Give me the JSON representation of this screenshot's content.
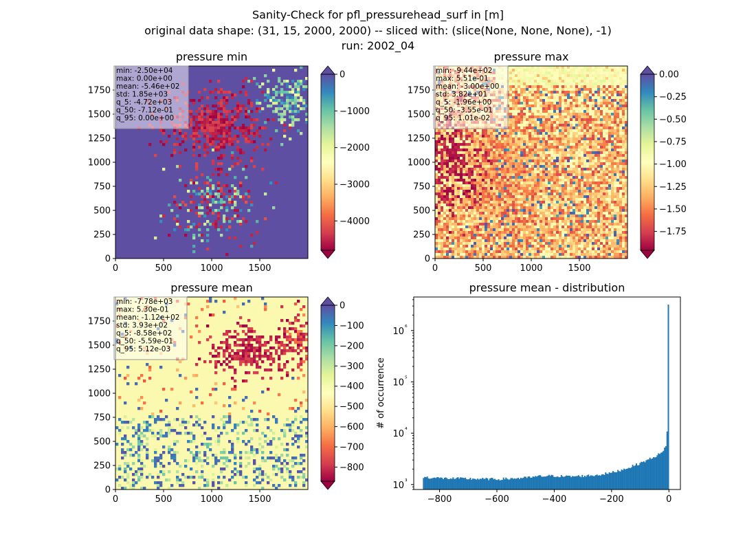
{
  "figure": {
    "title_lines": [
      "Sanity-Check for pfl_pressurehead_surf in [m]",
      "original data shape: (31, 15, 2000, 2000) -- sliced with: (slice(None, None, None), -1)",
      "run: 2002_04"
    ]
  },
  "chart_data": [
    {
      "type": "heatmap",
      "title": "pressure min",
      "xlim": [
        0,
        2000
      ],
      "ylim": [
        0,
        2000
      ],
      "xticks": [
        "0",
        "500",
        "1000",
        "1500"
      ],
      "yticks": [
        "0",
        "250",
        "500",
        "750",
        "1000",
        "1250",
        "1500",
        "1750"
      ],
      "colormap": "Spectral",
      "colorbar": {
        "vmin": -4800,
        "vmax": 0,
        "ticks": [
          "0",
          "−1000",
          "−2000",
          "−3000",
          "−4000"
        ],
        "extend": "both"
      },
      "stats": [
        "min: -2.50e+04",
        "max: 0.00e+00",
        "mean: -5.46e+02",
        "std: 1.85e+03",
        "q_5: -4.72e+03",
        "q_50: -7.12e-01",
        "q_95: 0.00e+00"
      ],
      "background_color": "#5e4fa2"
    },
    {
      "type": "heatmap",
      "title": "pressure max",
      "xlim": [
        0,
        2000
      ],
      "ylim": [
        0,
        2000
      ],
      "xticks": [
        "0",
        "500",
        "1000",
        "1500"
      ],
      "yticks": [
        "0",
        "250",
        "500",
        "750",
        "1000",
        "1250",
        "1500",
        "1750"
      ],
      "colormap": "Spectral",
      "colorbar": {
        "vmin": -1.96,
        "vmax": 0.0,
        "ticks": [
          "0.00",
          "−0.25",
          "−0.50",
          "−0.75",
          "−1.00",
          "−1.25",
          "−1.50",
          "−1.75"
        ],
        "extend": "both"
      },
      "stats": [
        "min: -9.44e+02",
        "max: 5.51e-01",
        "mean: -3.00e+00",
        "std: 3.82e+01",
        "q_5: -1.96e+00",
        "q_50: -3.55e-01",
        "q_95: 1.01e-02"
      ],
      "background_color": "#f8a15e"
    },
    {
      "type": "heatmap",
      "title": "pressure mean",
      "xlim": [
        0,
        2000
      ],
      "ylim": [
        0,
        2000
      ],
      "xticks": [
        "0",
        "500",
        "1000",
        "1500"
      ],
      "yticks": [
        "0",
        "250",
        "500",
        "750",
        "1000",
        "1250",
        "1500",
        "1750"
      ],
      "colormap": "Spectral",
      "colorbar": {
        "vmin": -870,
        "vmax": 0,
        "ticks": [
          "0",
          "−100",
          "−200",
          "−300",
          "−400",
          "−500",
          "−600",
          "−700",
          "−800"
        ],
        "extend": "both"
      },
      "stats": [
        "min: -7.78e+03",
        "max: 5.30e-01",
        "mean: -1.12e+02",
        "std: 3.93e+02",
        "q_5: -8.58e+02",
        "q_50: -5.59e-01",
        "q_95: 5.12e-03"
      ],
      "background_color": "#fbf8b0"
    },
    {
      "type": "bar",
      "title": "pressure mean - distribution",
      "ylabel": "# of occurrence",
      "xlabel": "",
      "yscale": "log",
      "xlim": [
        -890,
        40
      ],
      "ylim": [
        800,
        4500000
      ],
      "xticks": [
        "−800",
        "−600",
        "−400",
        "−200",
        "0"
      ],
      "xtick_values": [
        -800,
        -600,
        -400,
        -200,
        0
      ],
      "yticks": [
        "10³",
        "10⁴",
        "10⁵",
        "10⁶"
      ],
      "ytick_values": [
        1000,
        10000,
        100000,
        1000000
      ],
      "bar_color": "#1f77b4",
      "bins": {
        "start": -858,
        "width": 4.29,
        "count": 200
      },
      "counts_keypoints": [
        [
          -858,
          1400
        ],
        [
          -800,
          1330
        ],
        [
          -700,
          1300
        ],
        [
          -600,
          1270
        ],
        [
          -500,
          1350
        ],
        [
          -450,
          1450
        ],
        [
          -400,
          1480
        ],
        [
          -350,
          1430
        ],
        [
          -300,
          1470
        ],
        [
          -250,
          1530
        ],
        [
          -200,
          1700
        ],
        [
          -150,
          2050
        ],
        [
          -100,
          2600
        ],
        [
          -50,
          3500
        ],
        [
          -20,
          4300
        ],
        [
          -10,
          6000
        ],
        [
          -6,
          12000
        ],
        [
          -3,
          37000
        ],
        [
          0,
          3200000
        ]
      ]
    }
  ]
}
